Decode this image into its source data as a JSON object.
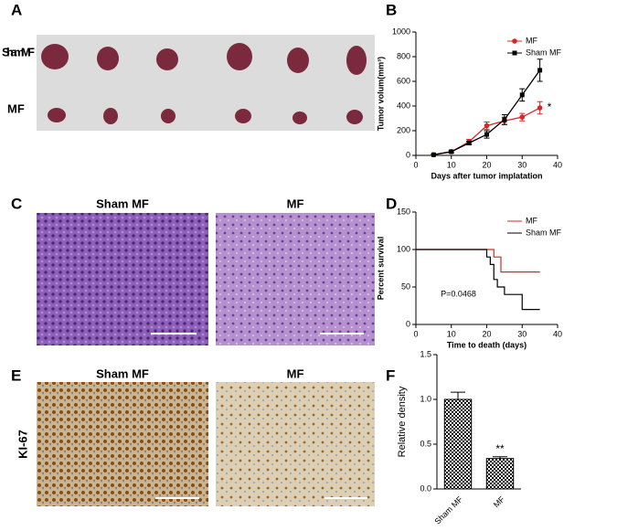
{
  "panel_labels": [
    "A",
    "B",
    "C",
    "D",
    "E",
    "F"
  ],
  "panel_a": {
    "row_labels": [
      "Sham MF",
      "MF"
    ]
  },
  "panel_c": {
    "image_labels": [
      "Sham MF",
      "MF"
    ]
  },
  "panel_e": {
    "image_labels": [
      "Sham MF",
      "MF"
    ],
    "row_label": "KI-67"
  },
  "chart_data": [
    {
      "type": "line",
      "xlabel": "Days after tumor implatation",
      "ylabel": "Tumor volum(mm³)",
      "x": [
        5,
        10,
        15,
        20,
        25,
        30,
        35
      ],
      "series": [
        {
          "name": "MF",
          "color": "#d62728",
          "marker": "circle",
          "values": [
            5,
            30,
            110,
            240,
            280,
            310,
            385
          ],
          "errors": [
            5,
            10,
            20,
            30,
            30,
            30,
            50
          ]
        },
        {
          "name": "Sham MF",
          "color": "#000000",
          "marker": "square",
          "values": [
            5,
            30,
            100,
            170,
            290,
            490,
            690
          ],
          "errors": [
            5,
            10,
            15,
            30,
            40,
            50,
            90
          ]
        }
      ],
      "xlim": [
        0,
        40
      ],
      "xticks": [
        0,
        10,
        20,
        30,
        40
      ],
      "ylim": [
        0,
        1000
      ],
      "yticks": [
        0,
        200,
        400,
        600,
        800,
        1000
      ],
      "legend": "upper right",
      "annotation": "*"
    },
    {
      "type": "step",
      "xlabel": "Time to death (days)",
      "ylabel": "Percent survival",
      "series": [
        {
          "name": "MF",
          "color": "#d62728",
          "x": [
            0,
            22,
            24,
            35
          ],
          "values": [
            100,
            90,
            70,
            70
          ]
        },
        {
          "name": "Sham MF",
          "color": "#000000",
          "x": [
            0,
            20,
            21,
            22,
            23,
            25,
            30,
            35
          ],
          "values": [
            100,
            90,
            80,
            60,
            50,
            40,
            20,
            20
          ]
        }
      ],
      "xlim": [
        0,
        40
      ],
      "xticks": [
        0,
        10,
        20,
        30,
        40
      ],
      "ylim": [
        0,
        150
      ],
      "yticks": [
        0,
        50,
        100,
        150
      ],
      "legend": "upper right",
      "annotation": "P=0.0468"
    },
    {
      "type": "bar",
      "ylabel": "Relative density",
      "categories": [
        "Sham MF",
        "MF"
      ],
      "values": [
        1.0,
        0.34
      ],
      "errors": [
        0.08,
        0.02
      ],
      "ylim": [
        0,
        1.5
      ],
      "yticks": [
        {
          "value": 0,
          "label": "0.0"
        },
        0.5,
        {
          "value": 1,
          "label": "1.0"
        },
        1.5
      ],
      "annotation": "**"
    }
  ]
}
